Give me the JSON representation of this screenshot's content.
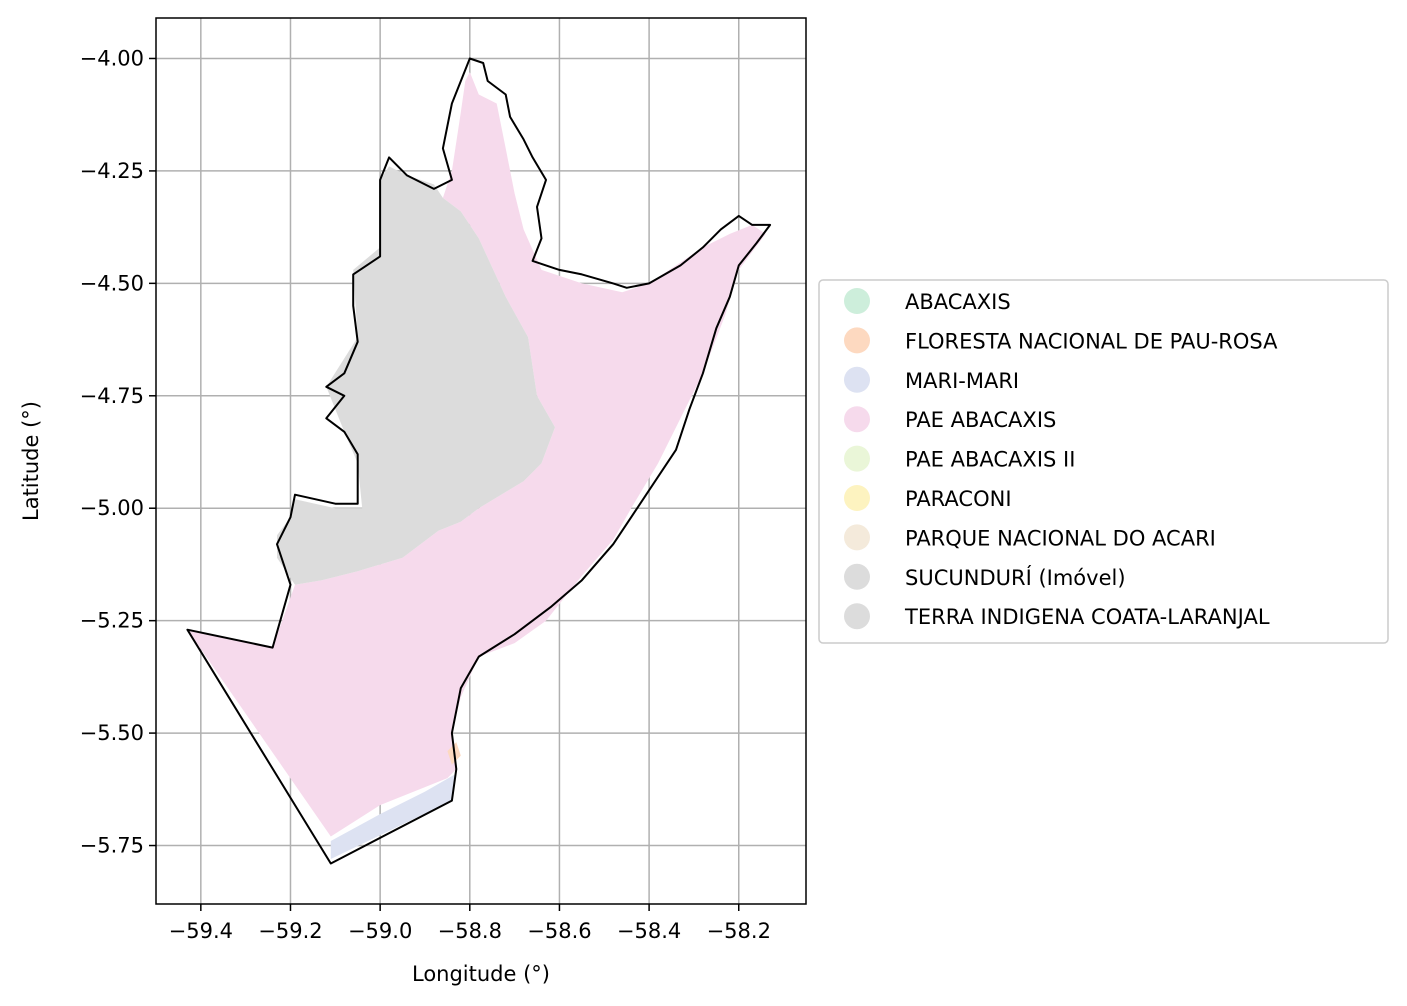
{
  "map": {
    "xlabel": "Longitude (°)",
    "ylabel": "Latitude (°)",
    "xlim": [
      -59.5,
      -58.05
    ],
    "ylim": [
      -5.88,
      -3.91
    ],
    "xticks": [
      -59.4,
      -59.2,
      -59.0,
      -58.8,
      -58.6,
      -58.4,
      -58.2
    ],
    "xtick_labels": [
      "−59.4",
      "−59.2",
      "−59.0",
      "−58.8",
      "−58.6",
      "−58.4",
      "−58.2"
    ],
    "yticks": [
      -4.0,
      -4.25,
      -4.5,
      -4.75,
      -5.0,
      -5.25,
      -5.5,
      -5.75
    ],
    "ytick_labels": [
      "−4.00",
      "−4.25",
      "−4.50",
      "−4.75",
      "−5.00",
      "−5.25",
      "−5.50",
      "−5.75"
    ],
    "grid": true,
    "legend_position": "right"
  },
  "legend": [
    {
      "label": "ABACAXIS",
      "color": "#cdeedb"
    },
    {
      "label": "FLORESTA NACIONAL DE PAU-ROSA",
      "color": "#fdd9c0"
    },
    {
      "label": "MARI-MARI",
      "color": "#dde2f2"
    },
    {
      "label": "PAE ABACAXIS",
      "color": "#f6daec"
    },
    {
      "label": "PAE ABACAXIS II",
      "color": "#eaf6d8"
    },
    {
      "label": "PARACONI",
      "color": "#fdf3c0"
    },
    {
      "label": "PARQUE NACIONAL DO ACARI",
      "color": "#f4eadb"
    },
    {
      "label": "SUCUNDURÍ (Imóvel)",
      "color": "#dcdcdc"
    },
    {
      "label": "TERRA INDIGENA COATA-LARANJAL",
      "color": "#dcdcdc"
    }
  ],
  "regions": [
    {
      "name": "PAE ABACAXIS",
      "color": "#f6daec",
      "coords": [
        [
          -58.8,
          -4.03
        ],
        [
          -58.78,
          -4.08
        ],
        [
          -58.74,
          -4.1
        ],
        [
          -58.72,
          -4.2
        ],
        [
          -58.7,
          -4.3
        ],
        [
          -58.68,
          -4.38
        ],
        [
          -58.64,
          -4.47
        ],
        [
          -58.55,
          -4.5
        ],
        [
          -58.46,
          -4.52
        ],
        [
          -58.4,
          -4.5
        ],
        [
          -58.34,
          -4.46
        ],
        [
          -58.28,
          -4.42
        ],
        [
          -58.22,
          -4.39
        ],
        [
          -58.17,
          -4.37
        ],
        [
          -58.14,
          -4.39
        ],
        [
          -58.2,
          -4.47
        ],
        [
          -58.23,
          -4.57
        ],
        [
          -58.28,
          -4.7
        ],
        [
          -58.33,
          -4.8
        ],
        [
          -58.38,
          -4.9
        ],
        [
          -58.44,
          -5.0
        ],
        [
          -58.48,
          -5.07
        ],
        [
          -58.55,
          -5.15
        ],
        [
          -58.63,
          -5.25
        ],
        [
          -58.7,
          -5.3
        ],
        [
          -58.78,
          -5.33
        ],
        [
          -58.82,
          -5.42
        ],
        [
          -58.84,
          -5.5
        ],
        [
          -58.83,
          -5.58
        ],
        [
          -58.85,
          -5.6
        ],
        [
          -58.9,
          -5.62
        ],
        [
          -59.0,
          -5.66
        ],
        [
          -59.11,
          -5.73
        ],
        [
          -59.43,
          -5.27
        ],
        [
          -59.24,
          -5.31
        ],
        [
          -59.19,
          -5.17
        ],
        [
          -59.13,
          -5.16
        ],
        [
          -59.05,
          -5.14
        ],
        [
          -58.95,
          -5.11
        ],
        [
          -58.87,
          -5.05
        ],
        [
          -58.82,
          -5.03
        ],
        [
          -58.78,
          -5.0
        ],
        [
          -58.68,
          -4.94
        ],
        [
          -58.64,
          -4.9
        ],
        [
          -58.61,
          -4.82
        ],
        [
          -58.65,
          -4.75
        ],
        [
          -58.67,
          -4.62
        ],
        [
          -58.72,
          -4.53
        ],
        [
          -58.78,
          -4.4
        ],
        [
          -58.82,
          -4.34
        ],
        [
          -58.86,
          -4.31
        ],
        [
          -58.84,
          -4.25
        ],
        [
          -58.82,
          -4.12
        ],
        [
          -58.81,
          -4.05
        ]
      ]
    },
    {
      "name": "SUCUNDURÍ (Imóvel)",
      "color": "#dcdcdc",
      "coords": [
        [
          -58.86,
          -4.31
        ],
        [
          -58.88,
          -4.28
        ],
        [
          -58.94,
          -4.26
        ],
        [
          -58.98,
          -4.24
        ],
        [
          -59.0,
          -4.27
        ],
        [
          -59.0,
          -4.42
        ],
        [
          -59.06,
          -4.47
        ],
        [
          -59.05,
          -4.62
        ],
        [
          -59.12,
          -4.73
        ],
        [
          -59.08,
          -4.83
        ],
        [
          -59.05,
          -4.9
        ],
        [
          -59.04,
          -5.0
        ],
        [
          -59.1,
          -5.0
        ],
        [
          -59.19,
          -4.98
        ],
        [
          -59.2,
          -5.02
        ],
        [
          -59.23,
          -5.06
        ],
        [
          -59.23,
          -5.11
        ],
        [
          -59.19,
          -5.17
        ],
        [
          -59.13,
          -5.16
        ],
        [
          -59.05,
          -5.14
        ],
        [
          -58.95,
          -5.11
        ],
        [
          -58.87,
          -5.05
        ],
        [
          -58.82,
          -5.03
        ],
        [
          -58.78,
          -5.0
        ],
        [
          -58.68,
          -4.94
        ],
        [
          -58.64,
          -4.9
        ],
        [
          -58.61,
          -4.82
        ],
        [
          -58.65,
          -4.75
        ],
        [
          -58.67,
          -4.62
        ],
        [
          -58.72,
          -4.53
        ],
        [
          -58.78,
          -4.4
        ],
        [
          -58.82,
          -4.34
        ]
      ]
    },
    {
      "name": "MARI-MARI",
      "color": "#dde2f2",
      "coords": [
        [
          -59.11,
          -5.74
        ],
        [
          -59.0,
          -5.68
        ],
        [
          -58.9,
          -5.63
        ],
        [
          -58.83,
          -5.59
        ],
        [
          -58.84,
          -5.65
        ],
        [
          -59.11,
          -5.78
        ]
      ]
    },
    {
      "name": "FLORESTA NACIONAL DE PAU-ROSA",
      "color": "#fdd9c0",
      "coords": [
        [
          -58.83,
          -5.52
        ],
        [
          -58.85,
          -5.54
        ],
        [
          -58.84,
          -5.57
        ],
        [
          -58.82,
          -5.55
        ]
      ]
    }
  ],
  "boundary": [
    [
      -58.8,
      -4.0
    ],
    [
      -58.77,
      -4.01
    ],
    [
      -58.76,
      -4.05
    ],
    [
      -58.72,
      -4.08
    ],
    [
      -58.71,
      -4.13
    ],
    [
      -58.68,
      -4.18
    ],
    [
      -58.66,
      -4.22
    ],
    [
      -58.63,
      -4.27
    ],
    [
      -58.65,
      -4.33
    ],
    [
      -58.64,
      -4.4
    ],
    [
      -58.66,
      -4.45
    ],
    [
      -58.6,
      -4.47
    ],
    [
      -58.55,
      -4.48
    ],
    [
      -58.48,
      -4.5
    ],
    [
      -58.45,
      -4.51
    ],
    [
      -58.4,
      -4.5
    ],
    [
      -58.33,
      -4.46
    ],
    [
      -58.28,
      -4.42
    ],
    [
      -58.24,
      -4.38
    ],
    [
      -58.2,
      -4.35
    ],
    [
      -58.17,
      -4.37
    ],
    [
      -58.13,
      -4.37
    ],
    [
      -58.16,
      -4.41
    ],
    [
      -58.2,
      -4.46
    ],
    [
      -58.22,
      -4.53
    ],
    [
      -58.25,
      -4.6
    ],
    [
      -58.28,
      -4.7
    ],
    [
      -58.31,
      -4.78
    ],
    [
      -58.34,
      -4.87
    ],
    [
      -58.38,
      -4.93
    ],
    [
      -58.44,
      -5.02
    ],
    [
      -58.48,
      -5.08
    ],
    [
      -58.55,
      -5.16
    ],
    [
      -58.62,
      -5.22
    ],
    [
      -58.7,
      -5.28
    ],
    [
      -58.78,
      -5.33
    ],
    [
      -58.82,
      -5.4
    ],
    [
      -58.84,
      -5.5
    ],
    [
      -58.83,
      -5.58
    ],
    [
      -58.84,
      -5.65
    ],
    [
      -59.11,
      -5.79
    ],
    [
      -59.43,
      -5.27
    ],
    [
      -59.24,
      -5.31
    ],
    [
      -59.2,
      -5.17
    ],
    [
      -59.23,
      -5.08
    ],
    [
      -59.2,
      -5.02
    ],
    [
      -59.19,
      -4.97
    ],
    [
      -59.1,
      -4.99
    ],
    [
      -59.05,
      -4.99
    ],
    [
      -59.05,
      -4.88
    ],
    [
      -59.08,
      -4.83
    ],
    [
      -59.12,
      -4.8
    ],
    [
      -59.08,
      -4.75
    ],
    [
      -59.12,
      -4.73
    ],
    [
      -59.08,
      -4.7
    ],
    [
      -59.05,
      -4.63
    ],
    [
      -59.06,
      -4.55
    ],
    [
      -59.06,
      -4.48
    ],
    [
      -59.0,
      -4.44
    ],
    [
      -59.0,
      -4.38
    ],
    [
      -59.0,
      -4.27
    ],
    [
      -58.98,
      -4.22
    ],
    [
      -58.94,
      -4.26
    ],
    [
      -58.88,
      -4.29
    ],
    [
      -58.84,
      -4.27
    ],
    [
      -58.86,
      -4.2
    ],
    [
      -58.84,
      -4.1
    ]
  ]
}
